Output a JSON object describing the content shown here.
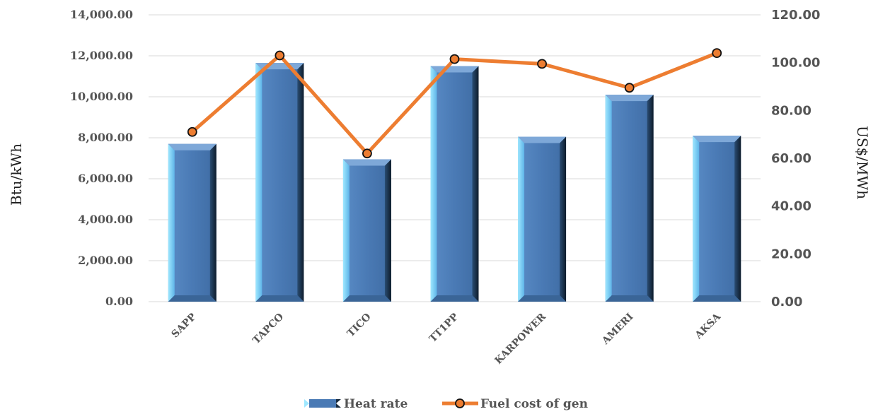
{
  "chart_data": {
    "type": "bar",
    "categories": [
      "SAPP",
      "TAPCO",
      "TICO",
      "TT1PP",
      "KARPOWER",
      "AMERI",
      "AKSA"
    ],
    "series": [
      {
        "name": "Heat rate",
        "type": "bar",
        "axis": "left",
        "values": [
          7700,
          11650,
          6950,
          11500,
          8050,
          10100,
          8100
        ],
        "color": "#4f81bd"
      },
      {
        "name": "Fuel cost of gen",
        "type": "line",
        "axis": "right",
        "values": [
          71,
          103,
          62,
          101.5,
          99.5,
          89.5,
          104
        ],
        "color": "#ed7d31"
      }
    ],
    "ylabel": "Btu/kWh",
    "y2label": "US$/MWh",
    "ylim": [
      0,
      14000
    ],
    "y2lim": [
      0,
      120
    ],
    "yticks": [
      "0.00",
      "2,000.00",
      "4,000.00",
      "6,000.00",
      "8,000.00",
      "10,000.00",
      "12,000.00",
      "14,000.00"
    ],
    "y2ticks": [
      "0.00",
      "20.00",
      "40.00",
      "60.00",
      "80.00",
      "100.00",
      "120.00"
    ],
    "grid": true,
    "legend": "bottom"
  }
}
